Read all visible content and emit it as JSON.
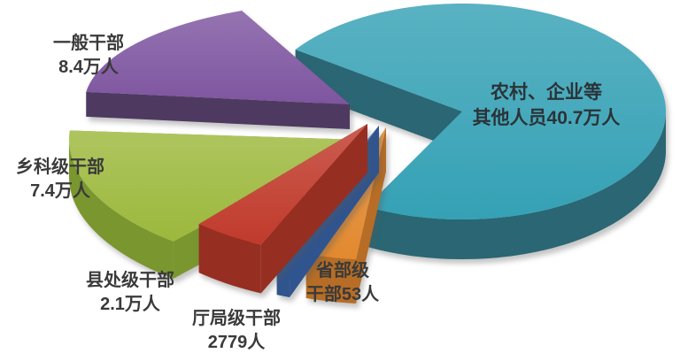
{
  "chart_data": {
    "type": "pie",
    "style": "3d-exploded",
    "title": "",
    "background": "#ffffff",
    "legend_position": "labels-around",
    "total_value": 588832,
    "slices": [
      {
        "id": "rural-enterprise-other",
        "name": "农村、企业等其他人员",
        "label_lines": [
          "农村、企业等",
          "其他人员40.7万人"
        ],
        "value": 407000,
        "display_value": "40.7万人",
        "color": "#35a1b5",
        "side_color": "#2a6673",
        "label_color": "#2b3338"
      },
      {
        "id": "general-cadres",
        "name": "一般干部",
        "label_lines": [
          "一般干部",
          "8.4万人"
        ],
        "value": 84000,
        "display_value": "8.4万人",
        "color": "#7e55a0",
        "side_color": "#4e3a60",
        "label_color": "#3a3a3a"
      },
      {
        "id": "township-level-cadres",
        "name": "乡科级干部",
        "label_lines": [
          "乡科级干部",
          "7.4万人"
        ],
        "value": 74000,
        "display_value": "7.4万人",
        "color": "#9cb83c",
        "side_color": "#7a962f",
        "label_color": "#3a3a3a"
      },
      {
        "id": "county-level-cadres",
        "name": "县处级干部",
        "label_lines": [
          "县处级干部",
          "2.1万人"
        ],
        "value": 21000,
        "display_value": "2.1万人",
        "color": "#c03a2b",
        "side_color": "#962e22",
        "label_color": "#3a3a3a"
      },
      {
        "id": "bureau-level-cadres",
        "name": "厅局级干部",
        "label_lines": [
          "厅局级干部",
          "2779人"
        ],
        "value": 2779,
        "display_value": "2779人",
        "color": "#3f6db4",
        "side_color": "#30548e",
        "label_color": "#3a3a3a"
      },
      {
        "id": "provincial-level-cadres",
        "name": "省部级干部",
        "label_lines": [
          "省部级",
          "干部53人"
        ],
        "value": 53,
        "display_value": "53人",
        "color": "#e2892f",
        "side_color": "#b76d25",
        "label_color": "#3a3a3a"
      }
    ]
  }
}
